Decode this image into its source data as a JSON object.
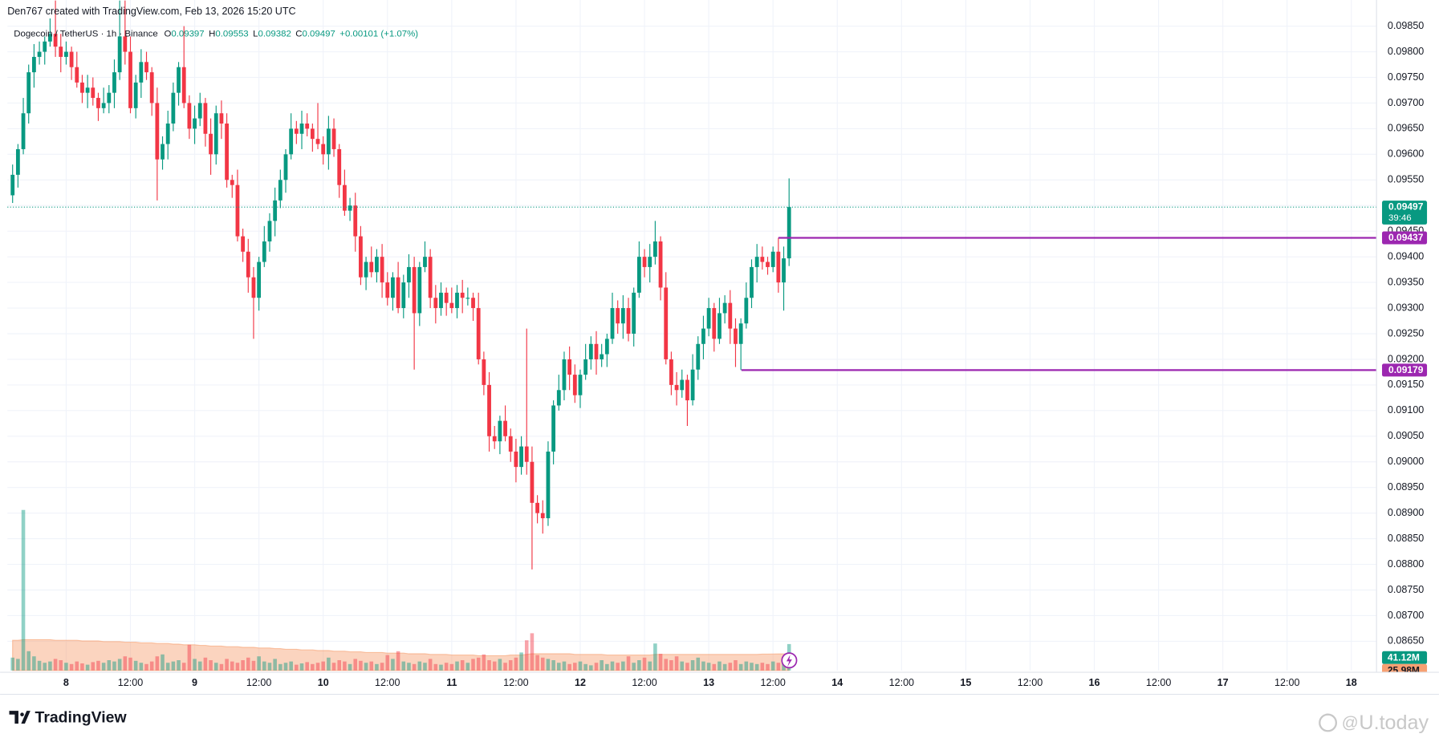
{
  "header": "Den767 created with TradingView.com, Feb 13, 2026 15:20 UTC",
  "chart_data": {
    "type": "candlestick",
    "title": "Dogecoin / TetherUS · 1h · Binance",
    "legend_labels": [
      "O",
      "H",
      "L",
      "C"
    ],
    "change": "+0.00101 (+1.07%)",
    "countdown": "39:46",
    "up_color": "#089981",
    "down_color": "#f23645",
    "grid": true,
    "x": [
      -10,
      -9,
      -8,
      -7,
      -6,
      -5,
      -4,
      -3,
      -2,
      -1,
      0,
      1,
      2,
      3,
      4,
      5,
      6,
      7,
      8,
      9,
      10,
      11,
      12,
      13,
      14,
      15,
      16,
      17,
      18,
      19,
      20,
      21,
      22,
      23,
      24,
      25,
      26,
      27,
      28,
      29,
      30,
      31,
      32,
      33,
      34,
      35,
      36,
      37,
      38,
      39,
      40,
      41,
      42,
      43,
      44,
      45,
      46,
      47,
      48,
      49,
      50,
      51,
      52,
      53,
      54,
      55,
      56,
      57,
      58,
      59,
      60,
      61,
      62,
      63,
      64,
      65,
      66,
      67,
      68,
      69,
      70,
      71,
      72,
      73,
      74,
      75,
      76,
      77,
      78,
      79,
      80,
      81,
      82,
      83,
      84,
      85,
      86,
      87,
      88,
      89,
      90,
      91,
      92,
      93,
      94,
      95,
      96,
      97,
      98,
      99,
      100,
      101,
      102,
      103,
      104,
      105,
      106,
      107,
      108,
      109,
      110,
      111,
      112,
      113,
      114,
      115,
      116,
      117,
      118,
      119,
      120,
      121,
      122,
      123,
      124,
      125,
      126,
      127,
      128,
      129,
      130,
      131,
      132,
      133,
      134,
      135
    ],
    "xlim": [
      -10.97,
      244.7
    ],
    "xticks": [
      {
        "value": 0,
        "label": "8"
      },
      {
        "value": 12,
        "label": "12:00"
      },
      {
        "value": 24,
        "label": "9"
      },
      {
        "value": 36,
        "label": "12:00"
      },
      {
        "value": 48,
        "label": "10"
      },
      {
        "value": 60,
        "label": "12:00"
      },
      {
        "value": 72,
        "label": "11"
      },
      {
        "value": 84,
        "label": "12:00"
      },
      {
        "value": 96,
        "label": "12"
      },
      {
        "value": 108,
        "label": "12:00"
      },
      {
        "value": 120,
        "label": "13"
      },
      {
        "value": 132,
        "label": "12:00"
      },
      {
        "value": 144,
        "label": "14"
      },
      {
        "value": 156,
        "label": "12:00"
      },
      {
        "value": 168,
        "label": "15"
      },
      {
        "value": 180,
        "label": "12:00"
      },
      {
        "value": 192,
        "label": "16"
      },
      {
        "value": 204,
        "label": "12:00"
      },
      {
        "value": 216,
        "label": "17"
      },
      {
        "value": 228,
        "label": "12:00"
      },
      {
        "value": 240,
        "label": "18"
      }
    ],
    "ylim": [
      0.08593,
      0.09901
    ],
    "yticks": [
      {
        "value": 0.0985,
        "label": "0.09850"
      },
      {
        "value": 0.098,
        "label": "0.09800"
      },
      {
        "value": 0.0975,
        "label": "0.09750"
      },
      {
        "value": 0.097,
        "label": "0.09700"
      },
      {
        "value": 0.0965,
        "label": "0.09650"
      },
      {
        "value": 0.096,
        "label": "0.09600"
      },
      {
        "value": 0.0955,
        "label": "0.09550"
      },
      {
        "value": 0.095,
        "label": "0.09500"
      },
      {
        "value": 0.0945,
        "label": "0.09450"
      },
      {
        "value": 0.094,
        "label": "0.09400"
      },
      {
        "value": 0.0935,
        "label": "0.09350"
      },
      {
        "value": 0.093,
        "label": "0.09300"
      },
      {
        "value": 0.0925,
        "label": "0.09250"
      },
      {
        "value": 0.092,
        "label": "0.09200"
      },
      {
        "value": 0.0915,
        "label": "0.09150"
      },
      {
        "value": 0.091,
        "label": "0.09100"
      },
      {
        "value": 0.0905,
        "label": "0.09050"
      },
      {
        "value": 0.09,
        "label": "0.09000"
      },
      {
        "value": 0.0895,
        "label": "0.08950"
      },
      {
        "value": 0.089,
        "label": "0.08900"
      },
      {
        "value": 0.0885,
        "label": "0.08850"
      },
      {
        "value": 0.088,
        "label": "0.08800"
      },
      {
        "value": 0.0875,
        "label": "0.08750"
      },
      {
        "value": 0.087,
        "label": "0.08700"
      },
      {
        "value": 0.0865,
        "label": "0.08650"
      }
    ],
    "series": [
      {
        "open": [
          0.0952,
          0.0956,
          0.0961,
          0.0968,
          0.0976,
          0.0979,
          0.098,
          0.0982,
          0.09835,
          0.0981,
          0.0979,
          0.098,
          0.0977,
          0.0974,
          0.0972,
          0.0973,
          0.0971,
          0.0969,
          0.097,
          0.0972,
          0.0976,
          0.0983,
          0.098,
          0.0969,
          0.0974,
          0.0978,
          0.0976,
          0.097,
          0.0959,
          0.0962,
          0.0966,
          0.0972,
          0.0977,
          0.097,
          0.0965,
          0.0967,
          0.097,
          0.0964,
          0.096,
          0.0968,
          0.0966,
          0.0955,
          0.0954,
          0.0944,
          0.0941,
          0.0936,
          0.0932,
          0.0939,
          0.0943,
          0.0947,
          0.0951,
          0.0955,
          0.096,
          0.0965,
          0.0964,
          0.0966,
          0.0965,
          0.0963,
          0.0962,
          0.096,
          0.0965,
          0.0961,
          0.0954,
          0.0949,
          0.095,
          0.0944,
          0.0936,
          0.0939,
          0.0937,
          0.094,
          0.0935,
          0.0932,
          0.0936,
          0.093,
          0.0935,
          0.0938,
          0.0929,
          0.0938,
          0.094,
          0.0932,
          0.093,
          0.0933,
          0.0931,
          0.093,
          0.0933,
          0.0932,
          0.0932,
          0.093,
          0.092,
          0.0915,
          0.0905,
          0.0904,
          0.0908,
          0.0905,
          0.0902,
          0.0899,
          0.0903,
          0.09,
          0.0892,
          0.089,
          0.0889,
          0.0902,
          0.0911,
          0.0914,
          0.092,
          0.0917,
          0.0913,
          0.0917,
          0.092,
          0.0923,
          0.092,
          0.0921,
          0.0924,
          0.093,
          0.0927,
          0.093,
          0.0925,
          0.0933,
          0.094,
          0.0938,
          0.094,
          0.0943,
          0.0934,
          0.092,
          0.0915,
          0.0914,
          0.0916,
          0.0912,
          0.0918,
          0.0923,
          0.0926,
          0.093,
          0.0924,
          0.0929,
          0.0931,
          0.0926,
          0.0923,
          0.0927,
          0.0932,
          0.0938,
          0.094,
          0.0939,
          0.0938,
          0.0941,
          0.0935,
          0.09397
        ],
        "high": [
          0.0958,
          0.0962,
          0.0971,
          0.09775,
          0.09815,
          0.0982,
          0.0983,
          0.09865,
          0.099,
          0.09835,
          0.0982,
          0.0981,
          0.098,
          0.09755,
          0.09755,
          0.0975,
          0.0972,
          0.0973,
          0.09735,
          0.09785,
          0.099,
          0.099,
          0.0983,
          0.09755,
          0.09805,
          0.098,
          0.0977,
          0.0973,
          0.09635,
          0.09685,
          0.0974,
          0.0978,
          0.0985,
          0.09715,
          0.09695,
          0.0972,
          0.0971,
          0.0967,
          0.09695,
          0.09705,
          0.0968,
          0.0956,
          0.0957,
          0.09455,
          0.09435,
          0.0938,
          0.094,
          0.0946,
          0.09485,
          0.09535,
          0.0957,
          0.0961,
          0.0968,
          0.09665,
          0.09685,
          0.0968,
          0.0966,
          0.097,
          0.09635,
          0.09675,
          0.0967,
          0.0962,
          0.0957,
          0.09515,
          0.09525,
          0.0946,
          0.094,
          0.0942,
          0.09415,
          0.09425,
          0.0937,
          0.0937,
          0.0939,
          0.09365,
          0.09405,
          0.094,
          0.0939,
          0.0943,
          0.09415,
          0.09345,
          0.0935,
          0.0934,
          0.0934,
          0.09345,
          0.09355,
          0.0934,
          0.0933,
          0.0933,
          0.09215,
          0.09175,
          0.0907,
          0.0909,
          0.0911,
          0.09065,
          0.09045,
          0.0905,
          0.0926,
          0.0903,
          0.08935,
          0.08925,
          0.0904,
          0.0912,
          0.0917,
          0.09215,
          0.09225,
          0.0919,
          0.0918,
          0.0923,
          0.09245,
          0.09255,
          0.0923,
          0.0925,
          0.0933,
          0.09315,
          0.09325,
          0.0932,
          0.0934,
          0.0943,
          0.09415,
          0.09425,
          0.0947,
          0.0944,
          0.0937,
          0.09215,
          0.09175,
          0.0918,
          0.0917,
          0.0921,
          0.09245,
          0.09285,
          0.0932,
          0.0931,
          0.0932,
          0.09325,
          0.09335,
          0.0928,
          0.0928,
          0.0935,
          0.09395,
          0.09425,
          0.0942,
          0.094,
          0.0942,
          0.09437,
          0.0942,
          0.09553
        ],
        "low": [
          0.09505,
          0.09535,
          0.096,
          0.0966,
          0.0973,
          0.09775,
          0.09775,
          0.0981,
          0.0979,
          0.0976,
          0.09775,
          0.09745,
          0.0973,
          0.097,
          0.0969,
          0.09695,
          0.09665,
          0.0968,
          0.0968,
          0.0969,
          0.09745,
          0.09775,
          0.0968,
          0.0967,
          0.0971,
          0.09745,
          0.09675,
          0.0951,
          0.0957,
          0.0959,
          0.09645,
          0.09695,
          0.0969,
          0.0963,
          0.0962,
          0.09655,
          0.09615,
          0.0956,
          0.0958,
          0.0963,
          0.09535,
          0.09515,
          0.0943,
          0.0939,
          0.0933,
          0.0924,
          0.09295,
          0.0938,
          0.0941,
          0.0944,
          0.09495,
          0.09525,
          0.0959,
          0.0962,
          0.0961,
          0.09635,
          0.09605,
          0.0961,
          0.0958,
          0.0957,
          0.09595,
          0.09515,
          0.0948,
          0.0947,
          0.0941,
          0.09345,
          0.09335,
          0.0936,
          0.0935,
          0.0932,
          0.09305,
          0.09295,
          0.0929,
          0.0928,
          0.0932,
          0.0918,
          0.09265,
          0.0937,
          0.093,
          0.0927,
          0.09285,
          0.09285,
          0.0929,
          0.0928,
          0.0929,
          0.09305,
          0.09275,
          0.0919,
          0.0913,
          0.0902,
          0.09025,
          0.09015,
          0.0904,
          0.09,
          0.0896,
          0.08975,
          0.08975,
          0.0879,
          0.0888,
          0.0886,
          0.08875,
          0.08995,
          0.091,
          0.0912,
          0.0914,
          0.09115,
          0.09105,
          0.0916,
          0.0918,
          0.0917,
          0.09185,
          0.09185,
          0.0923,
          0.0925,
          0.0924,
          0.09235,
          0.09225,
          0.0932,
          0.0936,
          0.0935,
          0.09385,
          0.09315,
          0.0919,
          0.0913,
          0.0911,
          0.09125,
          0.0907,
          0.0911,
          0.0916,
          0.092,
          0.09245,
          0.09215,
          0.0923,
          0.0927,
          0.0923,
          0.09185,
          0.09179,
          0.0926,
          0.093,
          0.0935,
          0.09375,
          0.09365,
          0.0937,
          0.0933,
          0.09295,
          0.09382
        ],
        "close": [
          0.0956,
          0.0961,
          0.0968,
          0.0976,
          0.0979,
          0.098,
          0.0982,
          0.09835,
          0.0981,
          0.0979,
          0.098,
          0.0977,
          0.0974,
          0.0972,
          0.0973,
          0.0971,
          0.0969,
          0.097,
          0.0972,
          0.0976,
          0.0983,
          0.098,
          0.0969,
          0.0974,
          0.0978,
          0.0976,
          0.097,
          0.0959,
          0.0962,
          0.0966,
          0.0972,
          0.0977,
          0.097,
          0.0965,
          0.0967,
          0.097,
          0.0964,
          0.096,
          0.0968,
          0.0966,
          0.0955,
          0.0954,
          0.0944,
          0.0941,
          0.0936,
          0.0932,
          0.0939,
          0.0943,
          0.0947,
          0.0951,
          0.0955,
          0.096,
          0.0965,
          0.0964,
          0.0966,
          0.0965,
          0.0963,
          0.0962,
          0.096,
          0.0965,
          0.0961,
          0.0954,
          0.0949,
          0.095,
          0.0944,
          0.0936,
          0.0939,
          0.0937,
          0.094,
          0.0935,
          0.0932,
          0.0936,
          0.093,
          0.0935,
          0.0938,
          0.0929,
          0.0938,
          0.094,
          0.0932,
          0.093,
          0.0933,
          0.0931,
          0.093,
          0.0933,
          0.0932,
          0.0932,
          0.093,
          0.092,
          0.0915,
          0.0905,
          0.0904,
          0.0908,
          0.0905,
          0.0902,
          0.0899,
          0.0903,
          0.09,
          0.0892,
          0.089,
          0.0889,
          0.0902,
          0.0911,
          0.0914,
          0.092,
          0.0917,
          0.0913,
          0.0917,
          0.092,
          0.0923,
          0.092,
          0.0921,
          0.0924,
          0.093,
          0.0927,
          0.093,
          0.0925,
          0.0933,
          0.094,
          0.0938,
          0.094,
          0.0943,
          0.0934,
          0.092,
          0.0915,
          0.0914,
          0.0916,
          0.0912,
          0.0918,
          0.0923,
          0.0926,
          0.093,
          0.0924,
          0.0929,
          0.0931,
          0.0926,
          0.0923,
          0.0927,
          0.0932,
          0.0938,
          0.094,
          0.0939,
          0.0938,
          0.0941,
          0.0935,
          0.09397,
          0.09497
        ]
      }
    ],
    "levels": [
      {
        "value": 0.09437,
        "x_start": 133.0,
        "color": "#9c27b0"
      },
      {
        "value": 0.09179,
        "x_start": 126.1,
        "color": "#9c27b0"
      }
    ],
    "volume": {
      "values": [
        20,
        18,
        250,
        30,
        22,
        15,
        12,
        14,
        18,
        16,
        12,
        10,
        14,
        11,
        9,
        13,
        15,
        12,
        16,
        14,
        18,
        22,
        20,
        15,
        12,
        10,
        14,
        22,
        25,
        12,
        14,
        16,
        12,
        40,
        18,
        14,
        20,
        16,
        12,
        10,
        18,
        14,
        12,
        16,
        20,
        15,
        22,
        14,
        12,
        18,
        10,
        12,
        14,
        9,
        11,
        13,
        10,
        12,
        14,
        20,
        12,
        16,
        14,
        10,
        18,
        15,
        12,
        14,
        10,
        12,
        24,
        18,
        30,
        14,
        12,
        10,
        14,
        12,
        18,
        10,
        9,
        12,
        10,
        14,
        16,
        12,
        18,
        20,
        25,
        16,
        14,
        18,
        12,
        16,
        20,
        28,
        47,
        58,
        24,
        20,
        18,
        16,
        12,
        14,
        10,
        12,
        14,
        10,
        8,
        12,
        16,
        10,
        14,
        12,
        14,
        22,
        12,
        16,
        20,
        14,
        42,
        26,
        18,
        16,
        22,
        14,
        12,
        16,
        20,
        14,
        12,
        10,
        14,
        10,
        12,
        16,
        10,
        14,
        12,
        10,
        12,
        10,
        14,
        12,
        16,
        41.12
      ],
      "last_label": "41.12M"
    },
    "volume_ma": {
      "values": [
        47,
        47,
        48,
        48,
        48,
        48,
        48,
        48,
        47,
        47,
        47,
        47,
        47,
        46,
        46,
        46,
        46,
        45,
        45,
        45,
        45,
        44,
        44,
        44,
        43,
        43,
        43,
        42,
        42,
        42,
        41,
        41,
        40,
        40,
        40,
        39,
        39,
        38,
        38,
        38,
        37,
        37,
        37,
        36,
        36,
        36,
        35,
        35,
        35,
        34,
        34,
        33,
        33,
        33,
        32,
        32,
        32,
        31,
        31,
        31,
        30,
        30,
        30,
        29,
        29,
        29,
        28,
        28,
        28,
        28,
        27,
        27,
        27,
        27,
        26,
        26,
        26,
        26,
        25,
        25,
        25,
        25,
        24,
        24,
        24,
        24,
        24,
        23,
        23,
        23,
        23,
        23,
        23,
        24,
        24,
        24,
        25,
        26,
        26,
        26,
        26,
        26,
        26,
        26,
        26,
        25,
        25,
        25,
        25,
        25,
        25,
        24,
        24,
        24,
        24,
        24,
        24,
        24,
        24,
        24,
        25,
        25,
        25,
        25,
        25,
        25,
        25,
        25,
        25,
        25,
        25,
        25,
        25,
        25,
        25,
        25,
        25,
        25,
        25,
        25,
        25.5,
        25.5,
        25.6,
        25.7,
        25.8,
        25.98
      ],
      "last_label": "25.98M",
      "color": "#f7a072"
    }
  },
  "branding": {
    "logo": "TradingView",
    "watermark": "U.today"
  }
}
